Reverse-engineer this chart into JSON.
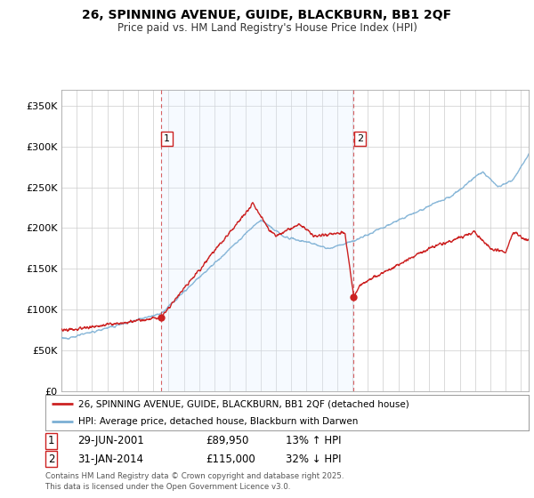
{
  "title": "26, SPINNING AVENUE, GUIDE, BLACKBURN, BB1 2QF",
  "subtitle": "Price paid vs. HM Land Registry's House Price Index (HPI)",
  "ylabel_ticks": [
    "£0",
    "£50K",
    "£100K",
    "£150K",
    "£200K",
    "£250K",
    "£300K",
    "£350K"
  ],
  "ytick_values": [
    0,
    50000,
    100000,
    150000,
    200000,
    250000,
    300000,
    350000
  ],
  "ylim": [
    0,
    370000
  ],
  "hpi_color": "#7bafd4",
  "price_color": "#cc2222",
  "vline_color": "#cc2222",
  "shade_color": "#ddeeff",
  "marker1_date": 2001.49,
  "marker1_value": 89950,
  "marker1_label": "1",
  "marker2_date": 2014.08,
  "marker2_value": 115000,
  "marker2_label": "2",
  "legend_line1": "26, SPINNING AVENUE, GUIDE, BLACKBURN, BB1 2QF (detached house)",
  "legend_line2": "HPI: Average price, detached house, Blackburn with Darwen",
  "table_row1": [
    "1",
    "29-JUN-2001",
    "£89,950",
    "13% ↑ HPI"
  ],
  "table_row2": [
    "2",
    "31-JAN-2014",
    "£115,000",
    "32% ↓ HPI"
  ],
  "footnote": "Contains HM Land Registry data © Crown copyright and database right 2025.\nThis data is licensed under the Open Government Licence v3.0.",
  "bg_color": "#ffffff",
  "plot_bg_color": "#ffffff",
  "grid_color": "#cccccc"
}
